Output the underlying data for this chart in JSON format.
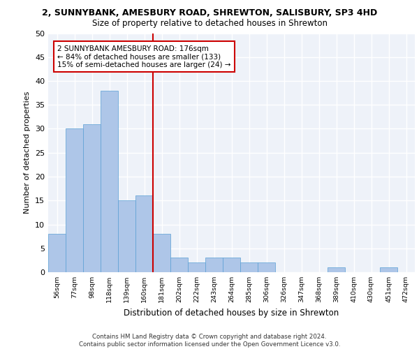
{
  "title_line1": "2, SUNNYBANK, AMESBURY ROAD, SHREWTON, SALISBURY, SP3 4HD",
  "title_line2": "Size of property relative to detached houses in Shrewton",
  "xlabel": "Distribution of detached houses by size in Shrewton",
  "ylabel": "Number of detached properties",
  "bin_labels": [
    "56sqm",
    "77sqm",
    "98sqm",
    "118sqm",
    "139sqm",
    "160sqm",
    "181sqm",
    "202sqm",
    "222sqm",
    "243sqm",
    "264sqm",
    "285sqm",
    "306sqm",
    "326sqm",
    "347sqm",
    "368sqm",
    "389sqm",
    "410sqm",
    "430sqm",
    "451sqm",
    "472sqm"
  ],
  "bar_values": [
    8,
    30,
    31,
    38,
    15,
    16,
    8,
    3,
    2,
    3,
    3,
    2,
    2,
    0,
    0,
    0,
    1,
    0,
    0,
    1,
    0
  ],
  "bar_color": "#aec6e8",
  "bar_edge_color": "#5a9fd4",
  "vline_x": 5.5,
  "vline_color": "#cc0000",
  "annotation_text": "2 SUNNYBANK AMESBURY ROAD: 176sqm\n← 84% of detached houses are smaller (133)\n15% of semi-detached houses are larger (24) →",
  "annotation_box_color": "#ffffff",
  "annotation_border_color": "#cc0000",
  "ylim": [
    0,
    50
  ],
  "yticks": [
    0,
    5,
    10,
    15,
    20,
    25,
    30,
    35,
    40,
    45,
    50
  ],
  "bg_color": "#eef2f9",
  "grid_color": "#ffffff",
  "footer": "Contains HM Land Registry data © Crown copyright and database right 2024.\nContains public sector information licensed under the Open Government Licence v3.0."
}
